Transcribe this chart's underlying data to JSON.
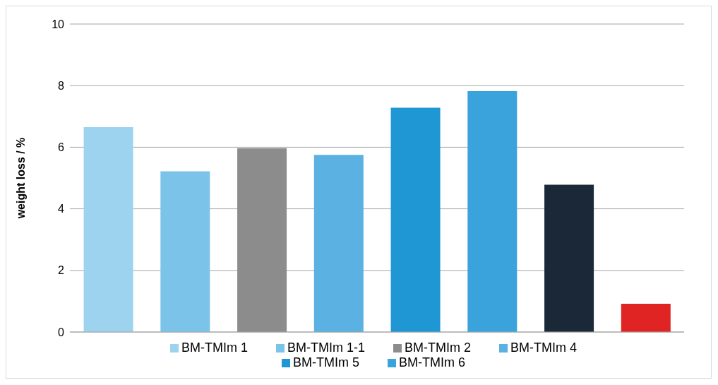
{
  "chart_data": {
    "type": "bar",
    "ylabel": "weight loss / %",
    "categories": [
      null,
      null,
      null,
      null,
      null,
      null,
      null,
      null
    ],
    "stacked": true,
    "ylim": [
      0,
      10
    ],
    "yticks": [
      0,
      2,
      4,
      6,
      8,
      10
    ],
    "grid": "y",
    "legend": "bottom",
    "tick_labels": "y",
    "series": [
      {
        "name": "BM-TMIm 1",
        "color": "#9ed3f0",
        "values": [
          6.65,
          null,
          null,
          null,
          null,
          null,
          null,
          null
        ]
      },
      {
        "name": "BM-TMIm 1-1",
        "color": "#7cc3ea",
        "values": [
          null,
          5.22,
          null,
          null,
          null,
          null,
          null,
          null
        ]
      },
      {
        "name": "BM-TMIm 2",
        "color": "#8c8c8c",
        "values": [
          null,
          null,
          5.97,
          null,
          null,
          null,
          null,
          null
        ]
      },
      {
        "name": "BM-TMIm 4",
        "color": "#5ab1e2",
        "values": [
          null,
          null,
          null,
          5.75,
          null,
          null,
          null,
          null
        ]
      },
      {
        "name": "BM-TMIm 5",
        "color": "#1f97d4",
        "values": [
          null,
          null,
          null,
          null,
          7.28,
          null,
          null,
          null
        ]
      },
      {
        "name": "BM-TMIm 6",
        "color": "#3aa3dc",
        "values": [
          null,
          null,
          null,
          null,
          null,
          7.82,
          null,
          null
        ]
      },
      {
        "color": "#1b2838",
        "values": [
          null,
          null,
          null,
          null,
          null,
          null,
          4.78,
          null
        ]
      },
      {
        "color": "#e02424",
        "values": [
          null,
          null,
          null,
          null,
          null,
          null,
          null,
          0.92
        ]
      }
    ]
  }
}
